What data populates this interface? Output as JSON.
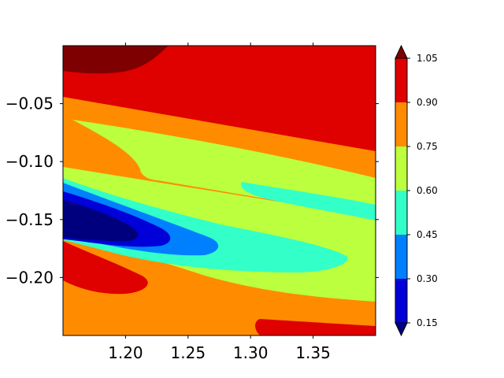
{
  "chart_data": {
    "type": "contourf",
    "title": "",
    "xlabel": "",
    "ylabel": "",
    "xlim": [
      1.15,
      1.4
    ],
    "ylim": [
      -0.25,
      -0.0
    ],
    "x_ticks": [
      1.2,
      1.25,
      1.3,
      1.35
    ],
    "x_tick_labels": [
      "1.20",
      "1.25",
      "1.30",
      "1.35"
    ],
    "y_ticks": [
      -0.05,
      -0.1,
      -0.15,
      -0.2
    ],
    "y_tick_labels": [
      "−0.05",
      "−0.10",
      "−0.15",
      "−0.20"
    ],
    "grid": false,
    "colorbar": {
      "extend": "both",
      "levels": [
        0.15,
        0.3,
        0.45,
        0.6,
        0.75,
        0.9,
        1.05
      ],
      "tick_labels": [
        "0.15",
        "0.30",
        "0.45",
        "0.60",
        "0.75",
        "0.90",
        "1.05"
      ],
      "under_color": "#00007f",
      "over_color": "#7f0000",
      "band_colors": [
        "#0000d8",
        "#0080ff",
        "#33ffc8",
        "#bbff3f",
        "#ff8c00",
        "#df0000"
      ]
    },
    "field_colors": {
      "darkred": "#7f0000",
      "red": "#df0000",
      "orange": "#ff8c00",
      "yellowgreen": "#bbff3f",
      "aquamarine": "#33ffc8",
      "azure": "#0080ff",
      "blue": "#0000d8",
      "navy": "#00007f"
    }
  }
}
